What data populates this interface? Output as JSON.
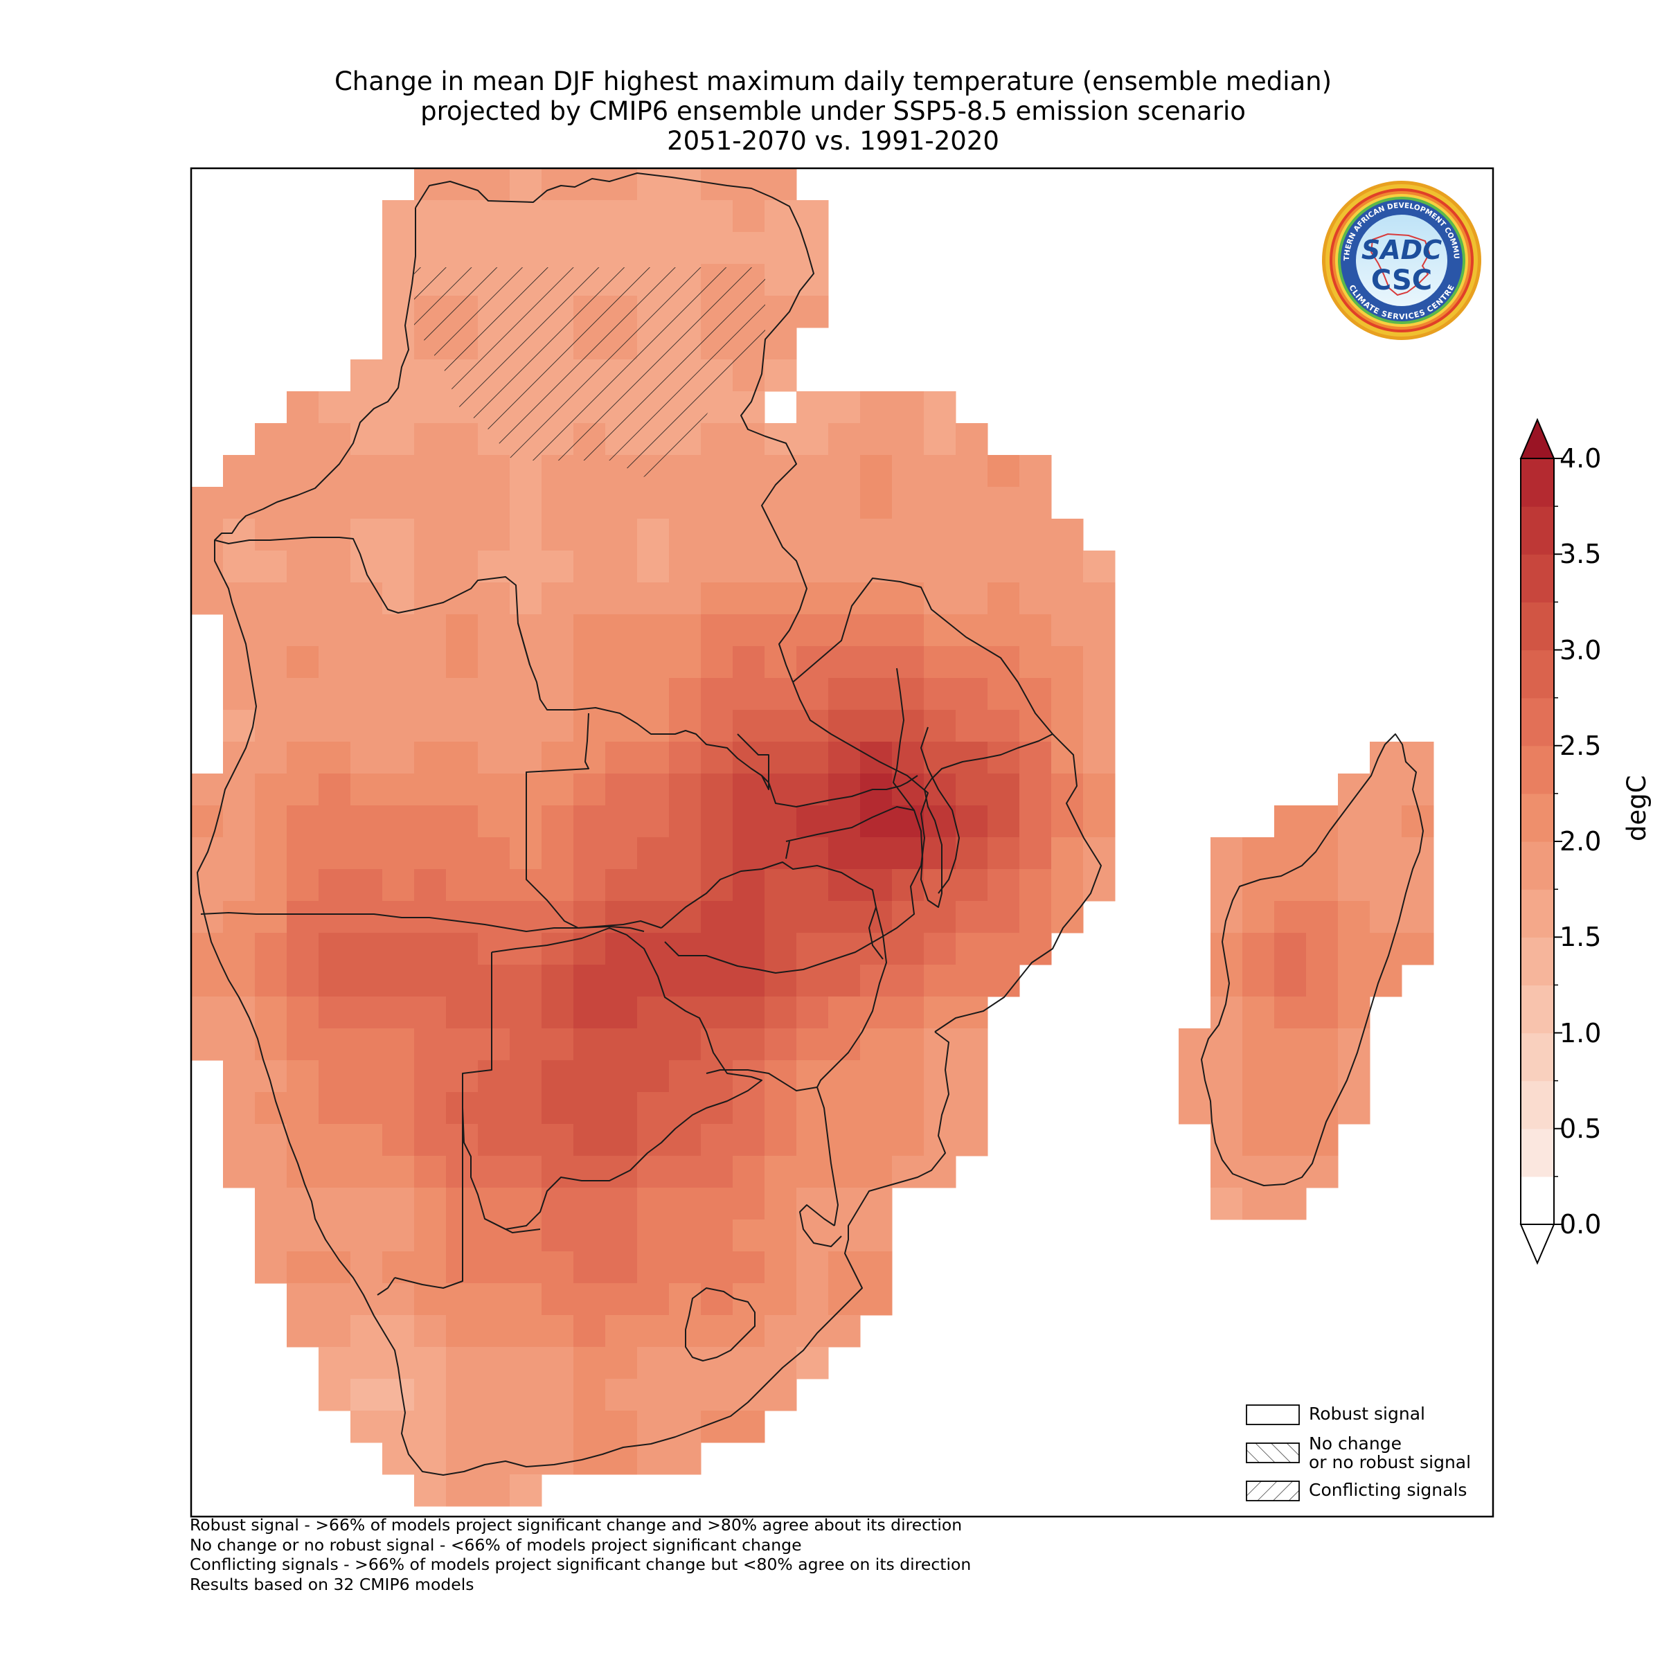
{
  "title": {
    "line1": "Change in mean DJF highest maximum daily temperature (ensemble median)",
    "line2": "projected by CMIP6 ensemble under SSP5-8.5 emission scenario",
    "line3": "2051-2070 vs. 1991-2020"
  },
  "colorbar": {
    "unit": "degC",
    "range": [
      0.0,
      4.0
    ],
    "ticks": [
      "4.0",
      "3.5",
      "3.0",
      "2.5",
      "2.0",
      "1.5",
      "1.0",
      "0.5",
      "0.0"
    ],
    "extend": "both",
    "colors": [
      "#ffffff",
      "#fbe7df",
      "#fadccf",
      "#f9d0be",
      "#f8c3ad",
      "#f6b59b",
      "#f4a88a",
      "#f19b7b",
      "#ee8f6c",
      "#e97f60",
      "#e27057",
      "#da634d",
      "#d15544",
      "#c8463d",
      "#be3836",
      "#b42a30",
      "#a81d2a"
    ]
  },
  "legend": {
    "items": [
      {
        "label": "Robust signal"
      },
      {
        "label_line1": "No change",
        "label_line2": "or no robust signal"
      },
      {
        "label": "Conflicting signals"
      }
    ]
  },
  "footnotes": [
    "Robust signal - >66% of models project significant change and >80% agree about its direction",
    "No change or no robust signal - <66% of models project significant change",
    "Conflicting signals - >66% of models project significant change but <80% agree on its direction",
    "Results based on 32 CMIP6 models"
  ],
  "logo": {
    "text_top": "SOUTHERN AFRICAN DEVELOPMENT COMMUNITY",
    "text_bottom": "CLIMATE SERVICES CENTRE",
    "mark": "SADC",
    "abbr": "CSC"
  },
  "map": {
    "region": "Southern Africa",
    "value_range_degC": [
      1.5,
      3.7
    ],
    "signal": "robust over most of the region; conflicting signals over northern DR Congo"
  }
}
